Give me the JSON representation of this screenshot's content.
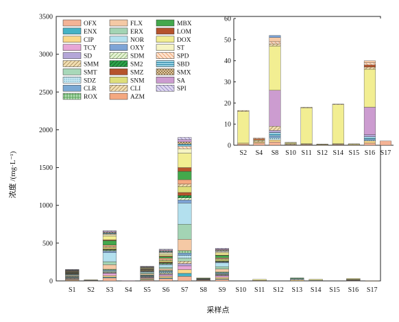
{
  "chart_data": [
    {
      "type": "bar",
      "stacked": true,
      "ylabel": "浓度 /(mg·L⁻¹)",
      "xlabel": "采样点",
      "ylim": [
        0,
        3500
      ],
      "yticks": [
        0,
        500,
        1000,
        1500,
        2000,
        2500,
        3000,
        3500
      ],
      "categories": [
        "S1",
        "S2",
        "S3",
        "S4",
        "S5",
        "S6",
        "S7",
        "S8",
        "S9",
        "S10",
        "S11",
        "S12",
        "S13",
        "S14",
        "S15",
        "S16",
        "S17"
      ],
      "series": [
        {
          "name": "OFX",
          "color": "#f4b396",
          "values": [
            8,
            2,
            40,
            2,
            12,
            30,
            60,
            6,
            20,
            0,
            2,
            0,
            0,
            2,
            0,
            4,
            1
          ]
        },
        {
          "name": "ENX",
          "color": "#46b3c6",
          "values": [
            0,
            0,
            10,
            0,
            6,
            10,
            40,
            0,
            8,
            0,
            0,
            0,
            0,
            0,
            0,
            0,
            0
          ]
        },
        {
          "name": "CIP",
          "color": "#fbd88a",
          "values": [
            10,
            3,
            20,
            1,
            14,
            20,
            50,
            6,
            20,
            0,
            2,
            0,
            10,
            2,
            0,
            4,
            1
          ]
        },
        {
          "name": "TCY",
          "color": "#e7a6d6",
          "values": [
            6,
            2,
            30,
            1,
            10,
            20,
            50,
            4,
            20,
            0,
            1,
            0,
            0,
            1,
            0,
            4,
            0
          ]
        },
        {
          "name": "SD",
          "color": "#b4a6d8",
          "values": [
            4,
            0,
            6,
            0,
            4,
            10,
            30,
            0,
            6,
            0,
            0,
            0,
            0,
            0,
            0,
            0,
            0
          ]
        },
        {
          "name": "SMM",
          "color": "#e4c68e",
          "hatch": "hatchDiagBrown",
          "values": [
            8,
            0,
            8,
            0,
            6,
            10,
            30,
            0,
            8,
            0,
            0,
            0,
            10,
            0,
            0,
            2,
            0
          ]
        },
        {
          "name": "SMT",
          "color": "#a8d8b9",
          "values": [
            6,
            0,
            10,
            0,
            6,
            10,
            40,
            0,
            8,
            0,
            0,
            0,
            0,
            0,
            0,
            0,
            0
          ]
        },
        {
          "name": "SDZ",
          "color": "#a8dcea",
          "hatch": "hatchDots",
          "values": [
            6,
            0,
            10,
            0,
            6,
            10,
            40,
            0,
            8,
            0,
            0,
            0,
            0,
            0,
            0,
            0,
            0
          ]
        },
        {
          "name": "CLR",
          "color": "#7aa9d4",
          "values": [
            6,
            0,
            10,
            0,
            8,
            10,
            30,
            0,
            10,
            0,
            0,
            0,
            10,
            0,
            0,
            0,
            0
          ]
        },
        {
          "name": "ROX",
          "color": "#8fd08f",
          "hatch": "hatchGrid",
          "values": [
            6,
            0,
            10,
            0,
            8,
            10,
            30,
            0,
            10,
            0,
            0,
            0,
            10,
            0,
            0,
            0,
            0
          ]
        },
        {
          "name": "FLX",
          "color": "#f5c9a5",
          "values": [
            10,
            2,
            60,
            0,
            14,
            20,
            150,
            6,
            40,
            0,
            2,
            0,
            0,
            2,
            0,
            4,
            0
          ]
        },
        {
          "name": "ERX",
          "color": "#a3d4b4",
          "values": [
            8,
            0,
            40,
            0,
            12,
            20,
            200,
            4,
            30,
            0,
            0,
            0,
            0,
            0,
            0,
            0,
            0
          ]
        },
        {
          "name": "NOR",
          "color": "#b3e0ee",
          "values": [
            8,
            2,
            120,
            0,
            12,
            30,
            280,
            4,
            50,
            0,
            0,
            0,
            0,
            2,
            0,
            2,
            0
          ]
        },
        {
          "name": "OXY",
          "color": "#7ea4d6",
          "values": [
            4,
            0,
            20,
            0,
            6,
            10,
            40,
            0,
            10,
            0,
            0,
            0,
            0,
            0,
            0,
            0,
            0
          ]
        },
        {
          "name": "SDM",
          "color": "#cfe6b3",
          "hatch": "hatchDiagGreen",
          "values": [
            4,
            0,
            10,
            0,
            4,
            10,
            30,
            0,
            6,
            0,
            0,
            0,
            0,
            0,
            0,
            0,
            0
          ]
        },
        {
          "name": "SM2",
          "color": "#2aa24a",
          "hatch": "hatchDiagDark",
          "values": [
            4,
            0,
            10,
            0,
            4,
            10,
            30,
            0,
            6,
            0,
            0,
            0,
            0,
            0,
            0,
            0,
            0
          ]
        },
        {
          "name": "SMZ",
          "color": "#b5532c",
          "values": [
            4,
            0,
            10,
            0,
            4,
            10,
            40,
            0,
            6,
            0,
            0,
            0,
            0,
            0,
            0,
            0,
            0
          ]
        },
        {
          "name": "SNM",
          "color": "#dede7a",
          "values": [
            6,
            0,
            20,
            0,
            6,
            20,
            80,
            2,
            20,
            0,
            0,
            0,
            0,
            0,
            0,
            2,
            0
          ]
        },
        {
          "name": "CLI",
          "color": "#e8d89a",
          "hatch": "hatchDiagBrown",
          "values": [
            4,
            0,
            10,
            0,
            4,
            10,
            30,
            0,
            8,
            0,
            0,
            0,
            0,
            0,
            0,
            0,
            0
          ]
        },
        {
          "name": "AZM",
          "color": "#f4a880",
          "values": [
            4,
            0,
            20,
            0,
            6,
            20,
            60,
            0,
            12,
            0,
            0,
            0,
            0,
            0,
            0,
            0,
            0
          ]
        },
        {
          "name": "MBX",
          "color": "#43a84c",
          "values": [
            4,
            0,
            60,
            0,
            6,
            20,
            110,
            2,
            30,
            0,
            0,
            0,
            0,
            0,
            0,
            0,
            0
          ]
        },
        {
          "name": "LOM",
          "color": "#b5532c",
          "values": [
            4,
            0,
            10,
            0,
            4,
            10,
            50,
            0,
            6,
            0,
            0,
            0,
            0,
            0,
            0,
            0,
            0
          ]
        },
        {
          "name": "DOX",
          "color": "#f2ee92",
          "values": [
            4,
            4,
            50,
            0,
            8,
            20,
            190,
            6,
            30,
            0,
            14,
            0,
            0,
            13,
            0,
            10,
            0
          ]
        },
        {
          "name": "ST",
          "color": "#f6f4c4",
          "values": [
            4,
            0,
            20,
            0,
            4,
            20,
            60,
            0,
            10,
            0,
            0,
            0,
            0,
            0,
            0,
            0,
            0
          ]
        },
        {
          "name": "SPD",
          "color": "#f8c09a",
          "hatch": "hatchDiagOrange",
          "values": [
            4,
            0,
            10,
            0,
            4,
            10,
            30,
            0,
            10,
            0,
            0,
            0,
            0,
            0,
            0,
            0,
            0
          ]
        },
        {
          "name": "SBD",
          "color": "#3fa8c6",
          "hatch": "hatchHorizBlue",
          "values": [
            4,
            0,
            10,
            0,
            4,
            10,
            30,
            0,
            10,
            0,
            0,
            0,
            0,
            0,
            0,
            0,
            0
          ]
        },
        {
          "name": "SMX",
          "color": "#e6c89a",
          "hatch": "hatchCross",
          "values": [
            4,
            0,
            10,
            0,
            4,
            10,
            30,
            0,
            10,
            0,
            0,
            0,
            0,
            0,
            0,
            0,
            0
          ]
        },
        {
          "name": "SA",
          "color": "#cc9cd0",
          "values": [
            4,
            0,
            10,
            0,
            4,
            10,
            30,
            0,
            10,
            0,
            0,
            0,
            0,
            0,
            0,
            0,
            0
          ]
        },
        {
          "name": "SPI",
          "color": "#b2a6d8",
          "hatch": "hatchDiagPurple",
          "values": [
            4,
            0,
            10,
            0,
            4,
            10,
            30,
            0,
            10,
            0,
            0,
            0,
            0,
            0,
            0,
            0,
            0
          ]
        }
      ],
      "legend_position": "top-left"
    },
    {
      "type": "bar",
      "stacked": true,
      "inset": true,
      "ylim": [
        0,
        60
      ],
      "yticks": [
        0,
        10,
        20,
        30,
        40,
        50,
        60
      ],
      "categories": [
        "S2",
        "S4",
        "S8",
        "S10",
        "S11",
        "S12",
        "S14",
        "S15",
        "S16",
        "S17"
      ],
      "series": [
        {
          "name": "OFX",
          "values": [
            0.5,
            1,
            1.5,
            0.2,
            0.3,
            0.1,
            0.3,
            0.1,
            1,
            2
          ]
        },
        {
          "name": "CIP",
          "values": [
            0.5,
            0.6,
            1,
            0.2,
            0.2,
            0.1,
            0.2,
            0.1,
            1,
            0
          ]
        },
        {
          "name": "SDZ",
          "values": [
            0,
            0,
            1,
            0,
            0,
            0,
            0,
            0,
            0.5,
            0
          ]
        },
        {
          "name": "CLR",
          "values": [
            0,
            0,
            1,
            0,
            0,
            0,
            0,
            0,
            0.5,
            0
          ]
        },
        {
          "name": "SBD",
          "values": [
            0,
            0,
            1.5,
            0,
            0,
            0,
            0,
            0,
            1,
            0
          ]
        },
        {
          "name": "SD",
          "values": [
            0,
            0,
            1,
            0,
            0,
            0,
            0,
            0,
            1,
            0
          ]
        },
        {
          "name": "SMM",
          "values": [
            0,
            0.6,
            2,
            0.3,
            0.2,
            0,
            0.2,
            0,
            0,
            0
          ]
        },
        {
          "name": "SA",
          "values": [
            0,
            0,
            17,
            0,
            0,
            0,
            0,
            0,
            13,
            0
          ]
        },
        {
          "name": "DOX",
          "values": [
            15,
            0.3,
            21,
            0.5,
            17,
            0.3,
            18.5,
            0.4,
            18,
            0
          ]
        },
        {
          "name": "CLI",
          "values": [
            0.5,
            0,
            1,
            0.2,
            0.3,
            0.1,
            0.3,
            0.1,
            1,
            0
          ]
        },
        {
          "name": "LOM",
          "values": [
            0,
            0.5,
            0,
            0,
            0,
            0,
            0,
            0,
            1,
            0
          ]
        },
        {
          "name": "SPD",
          "values": [
            0,
            0.5,
            1,
            0,
            0,
            0,
            0,
            0,
            1,
            0
          ]
        },
        {
          "name": "FLX",
          "values": [
            0,
            0,
            2,
            0,
            0,
            0,
            0,
            0,
            1,
            0
          ]
        },
        {
          "name": "OXY",
          "values": [
            0,
            0,
            1,
            0,
            0,
            0,
            0,
            0,
            0,
            0
          ]
        }
      ]
    }
  ]
}
